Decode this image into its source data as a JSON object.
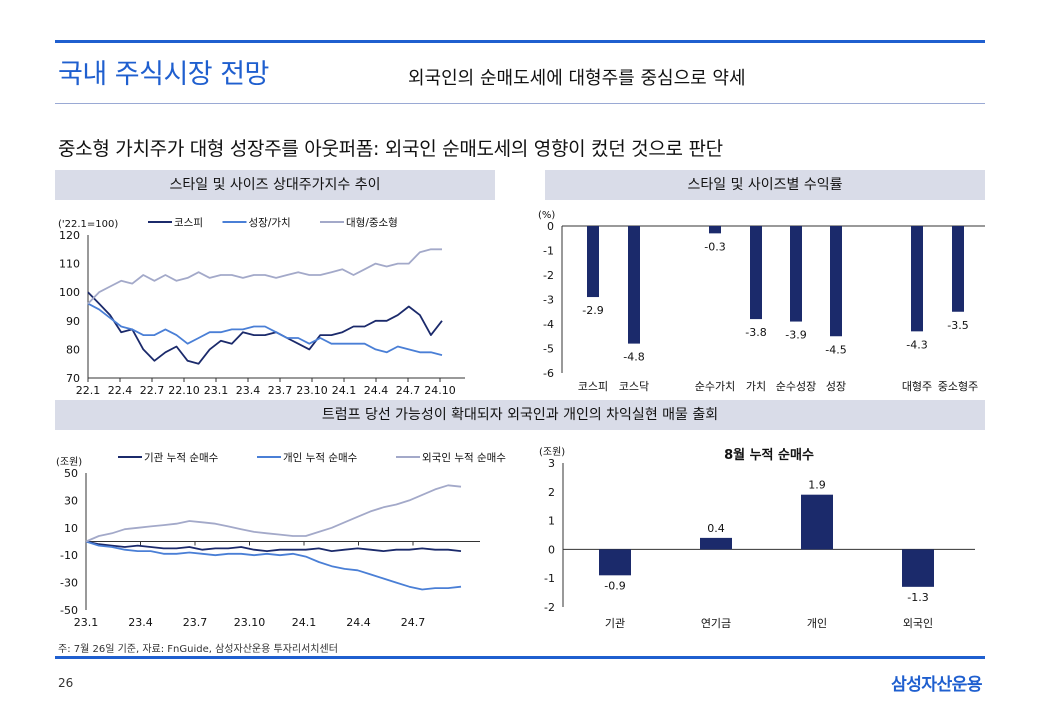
{
  "page": {
    "title": "국내 주식시장 전망",
    "subtitle": "외국인의 순매도세에 대형주를 중심으로 약세",
    "headline": "중소형 가치주가 대형 성장주를 아웃퍼폼: 외국인 순매도세의 영향이 컸던 것으로 판단",
    "band_top_left": "스타일 및 사이즈 상대주가지수 추이",
    "band_top_right": "스타일 및 사이즈별 수익률",
    "band_middle": "트럼프 당선 가능성이 확대되자 외국인과 개인의 차익실현 매물 출회",
    "footnote": "주: 7월 26일 기준, 자료: FnGuide, 삼성자산운용 투자리서치센터",
    "page_number": "26",
    "brand": "삼성자산운용",
    "colors": {
      "accent": "#1f5fcf",
      "navy": "#1b2a6b",
      "blue": "#4a7fd6",
      "gray": "#a3a9c9"
    }
  },
  "chart_data": [
    {
      "type": "line",
      "unit": "('22.1=100)",
      "x_ticks": [
        "22.1",
        "22.4",
        "22.7",
        "22.10",
        "23.1",
        "23.4",
        "23.7",
        "23.10",
        "24.1",
        "24.4",
        "24.7",
        "24.10"
      ],
      "ylim": [
        70,
        120
      ],
      "y_ticks": [
        70,
        80,
        90,
        100,
        110,
        120
      ],
      "series": [
        {
          "name": "코스피",
          "color": "#1b2a6b",
          "values": [
            100,
            96,
            92,
            86,
            87,
            80,
            76,
            79,
            81,
            76,
            75,
            80,
            83,
            82,
            86,
            85,
            85,
            86,
            84,
            82,
            80,
            85,
            85,
            86,
            88,
            88,
            90,
            90,
            92,
            95,
            92,
            85,
            90
          ]
        },
        {
          "name": "성장/가치",
          "color": "#4a7fd6",
          "values": [
            96,
            94,
            91,
            88,
            87,
            85,
            85,
            87,
            85,
            82,
            84,
            86,
            86,
            87,
            87,
            88,
            88,
            86,
            84,
            84,
            82,
            84,
            82,
            82,
            82,
            82,
            80,
            79,
            81,
            80,
            79,
            79,
            78
          ]
        },
        {
          "name": "대형/중소형",
          "color": "#a3a9c9",
          "values": [
            96,
            100,
            102,
            104,
            103,
            106,
            104,
            106,
            104,
            105,
            107,
            105,
            106,
            106,
            105,
            106,
            106,
            105,
            106,
            107,
            106,
            106,
            107,
            108,
            106,
            108,
            110,
            109,
            110,
            110,
            114,
            115,
            115
          ]
        }
      ]
    },
    {
      "type": "bar",
      "unit": "(%)",
      "categories": [
        "코스피",
        "코스닥",
        "순수가치",
        "가치",
        "순수성장",
        "성장",
        "대형주",
        "중소형주"
      ],
      "values": [
        -2.9,
        -4.8,
        -0.3,
        -3.8,
        -3.9,
        -4.5,
        -4.3,
        -3.5
      ],
      "labels": [
        "-2.9",
        "-4.8",
        "-0.3",
        "-3.8",
        "-3.9",
        "-4.5",
        "-4.3",
        "-3.5"
      ],
      "ylim": [
        -6,
        0
      ],
      "y_ticks": [
        0,
        -1,
        -2,
        -3,
        -4,
        -5,
        -6
      ],
      "color": "#1b2a6b"
    },
    {
      "type": "line",
      "unit": "(조원)",
      "x_ticks": [
        "23.1",
        "23.4",
        "23.7",
        "23.10",
        "24.1",
        "24.4",
        "24.7"
      ],
      "ylim": [
        -50,
        50
      ],
      "y_ticks": [
        50,
        30,
        10,
        -10,
        -30,
        -50
      ],
      "series": [
        {
          "name": "기관 누적 순매수",
          "color": "#1b2a6b",
          "values": [
            0,
            -2,
            -3,
            -4,
            -3,
            -4,
            -5,
            -5,
            -4,
            -6,
            -5,
            -5,
            -4,
            -6,
            -7,
            -6,
            -6,
            -6,
            -5,
            -7,
            -6,
            -5,
            -6,
            -7,
            -6,
            -6,
            -5,
            -6,
            -6,
            -7
          ]
        },
        {
          "name": "개인 누적 순매수",
          "color": "#4a7fd6",
          "values": [
            0,
            -3,
            -4,
            -6,
            -7,
            -7,
            -9,
            -9,
            -8,
            -9,
            -10,
            -9,
            -9,
            -10,
            -9,
            -10,
            -9,
            -11,
            -15,
            -18,
            -20,
            -21,
            -24,
            -27,
            -30,
            -33,
            -35,
            -34,
            -34,
            -33
          ]
        },
        {
          "name": "외국인 누적 순매수",
          "color": "#a3a9c9",
          "values": [
            0,
            4,
            6,
            9,
            10,
            11,
            12,
            13,
            15,
            14,
            13,
            11,
            9,
            7,
            6,
            5,
            4,
            4,
            7,
            10,
            14,
            18,
            22,
            25,
            27,
            30,
            34,
            38,
            41,
            40
          ]
        }
      ]
    },
    {
      "type": "bar",
      "title": "8월 누적 순매수",
      "unit": "(조원)",
      "categories": [
        "기관",
        "연기금",
        "개인",
        "외국인"
      ],
      "values": [
        -0.9,
        0.4,
        1.9,
        -1.3
      ],
      "labels": [
        "-0.9",
        "0.4",
        "1.9",
        "-1.3"
      ],
      "ylim": [
        -2,
        3
      ],
      "y_ticks": [
        3,
        2,
        1,
        0,
        -1,
        -2
      ],
      "color": "#1b2a6b"
    }
  ]
}
